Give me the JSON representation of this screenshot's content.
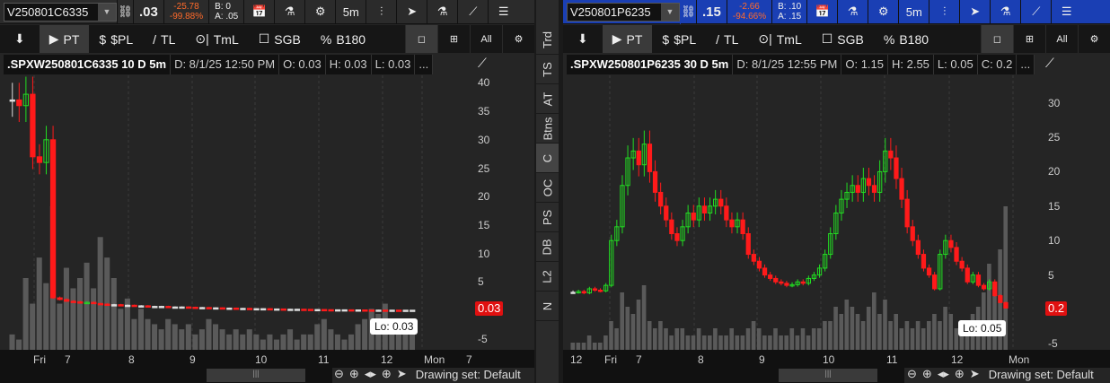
{
  "colors": {
    "up": "#22dd22",
    "down": "#ff1a1a",
    "flat": "#dddddd",
    "volume": "#5a5a5a",
    "active_header": "#1a3fb4"
  },
  "toolbar": {
    "pin": "pin-icon",
    "items": [
      {
        "icon": "▶",
        "label": "PT"
      },
      {
        "icon": "$",
        "label": "$PL"
      },
      {
        "icon": "/",
        "label": "TL"
      },
      {
        "icon": "⊙|",
        "label": "TmL"
      },
      {
        "icon": "☐",
        "label": "SGB"
      },
      {
        "icon": "%",
        "label": "B180"
      }
    ],
    "right": [
      "◻",
      "⊞",
      "All",
      "⚙"
    ]
  },
  "header_icons": [
    "📅",
    "⚗",
    "⚙",
    "5m",
    "⫶",
    "➤",
    "⚗",
    "⟋",
    "☰"
  ],
  "sidebar": {
    "tabs": [
      "Trd",
      "TS",
      "AT",
      "Btns",
      "C",
      "OC",
      "PS",
      "DB",
      "L2",
      "N"
    ],
    "selected": "C"
  },
  "left": {
    "symbol": "V250801C6335",
    "last": ".03",
    "change": "-25.78",
    "change_pct": "-99.88%",
    "bid": "B: 0",
    "ask": "A: .05",
    "title": ".SPXW250801C6335 10 D 5m",
    "date": "D: 8/1/25 12:50 PM",
    "open": "O: 0.03",
    "high": "H: 0.03",
    "low": "L: 0.03",
    "more": "...",
    "price_label": "0.03",
    "lo_label": "Lo: 0.03",
    "drawing_set": "Drawing set: Default",
    "y_ticks": [
      40,
      35,
      30,
      25,
      20,
      15,
      10,
      5,
      -5
    ],
    "x_ticks": [
      "Fri",
      "7",
      "8",
      "9",
      "10",
      "11",
      "12",
      "Mon",
      "7"
    ]
  },
  "right": {
    "symbol": "V250801P6235",
    "last": ".15",
    "change": "-2.66",
    "change_pct": "-94.66%",
    "bid": "B: .10",
    "ask": "A: .15",
    "title": ".SPXW250801P6235 30 D 5m",
    "date": "D: 8/1/25 12:55 PM",
    "open": "O: 1.15",
    "high": "H: 2.55",
    "low": "L: 0.05",
    "close": "C: 0.2",
    "more": "...",
    "price_label": "0.2",
    "lo_label": "Lo: 0.05",
    "drawing_set": "Drawing set: Default",
    "y_ticks": [
      30,
      25,
      20,
      15,
      10,
      5,
      -5
    ],
    "x_ticks": [
      "12",
      "Fri",
      "7",
      "8",
      "9",
      "10",
      "11",
      "12",
      "Mon"
    ]
  },
  "chart_data": [
    {
      "type": "candlestick",
      "name": ".SPXW250801C6335",
      "ylim": [
        -7,
        42
      ],
      "closes": [
        37,
        36,
        38,
        27,
        26,
        30,
        2.2,
        1.9,
        1.6,
        1.5,
        1.3,
        1.4,
        1.2,
        1.1,
        1.0,
        1.0,
        0.9,
        0.9,
        0.8,
        0.8,
        0.7,
        0.7,
        0.7,
        0.6,
        0.6,
        0.6,
        0.55,
        0.5,
        0.5,
        0.45,
        0.45,
        0.4,
        0.4,
        0.35,
        0.35,
        0.3,
        0.3,
        0.3,
        0.25,
        0.25,
        0.2,
        0.2,
        0.2,
        0.18,
        0.15,
        0.15,
        0.12,
        0.1,
        0.1,
        0.1,
        0.08,
        0.08,
        0.06,
        0.05,
        0.05,
        0.04,
        0.04,
        0.03,
        0.03,
        0.03
      ],
      "volume": [
        3,
        2,
        14,
        9,
        18,
        13,
        28,
        9,
        16,
        12,
        14,
        17,
        12,
        22,
        18,
        14,
        8,
        10,
        6,
        8,
        6,
        5,
        4,
        6,
        5,
        4,
        5,
        3,
        4,
        6,
        5,
        4,
        3,
        4,
        3,
        4,
        3,
        2,
        3,
        2,
        3,
        4,
        2,
        3,
        3,
        5,
        6,
        4,
        3,
        2,
        3,
        5,
        6,
        8,
        7,
        9,
        6,
        5,
        4,
        3
      ]
    },
    {
      "type": "candlestick",
      "name": ".SPXW250801P6235",
      "ylim": [
        -6,
        34
      ],
      "closes": [
        2.5,
        2.6,
        2.4,
        3,
        2.8,
        2.7,
        3.5,
        10,
        12,
        18,
        22,
        23,
        21,
        24,
        20,
        17,
        15,
        13,
        11,
        10,
        12,
        14,
        13,
        15,
        14,
        15,
        16,
        15,
        13,
        12,
        13,
        11,
        8,
        7,
        6,
        5,
        4.5,
        4,
        3.8,
        3.5,
        3.6,
        4,
        3.8,
        4.5,
        5,
        6,
        8,
        11,
        14,
        16,
        17,
        18,
        17,
        19,
        18,
        17,
        20,
        23,
        22,
        19,
        16,
        12,
        10,
        8,
        6,
        5,
        3,
        8,
        10,
        9,
        7,
        6,
        4,
        5,
        3.5,
        3,
        4,
        2,
        1,
        0.2
      ],
      "volume": [
        1,
        1,
        1,
        2,
        1,
        1,
        2,
        4,
        3,
        8,
        6,
        5,
        7,
        9,
        4,
        3,
        4,
        3,
        2,
        3,
        3,
        2,
        2,
        3,
        2,
        2,
        3,
        2,
        2,
        3,
        2,
        2,
        3,
        4,
        3,
        2,
        2,
        3,
        2,
        2,
        3,
        2,
        3,
        2,
        3,
        3,
        4,
        4,
        6,
        5,
        7,
        6,
        5,
        4,
        6,
        8,
        5,
        7,
        4,
        5,
        3,
        4,
        3,
        4,
        3,
        4,
        5,
        4,
        6,
        5,
        3,
        4,
        3,
        5,
        6,
        8,
        12,
        9,
        14,
        20
      ]
    }
  ]
}
